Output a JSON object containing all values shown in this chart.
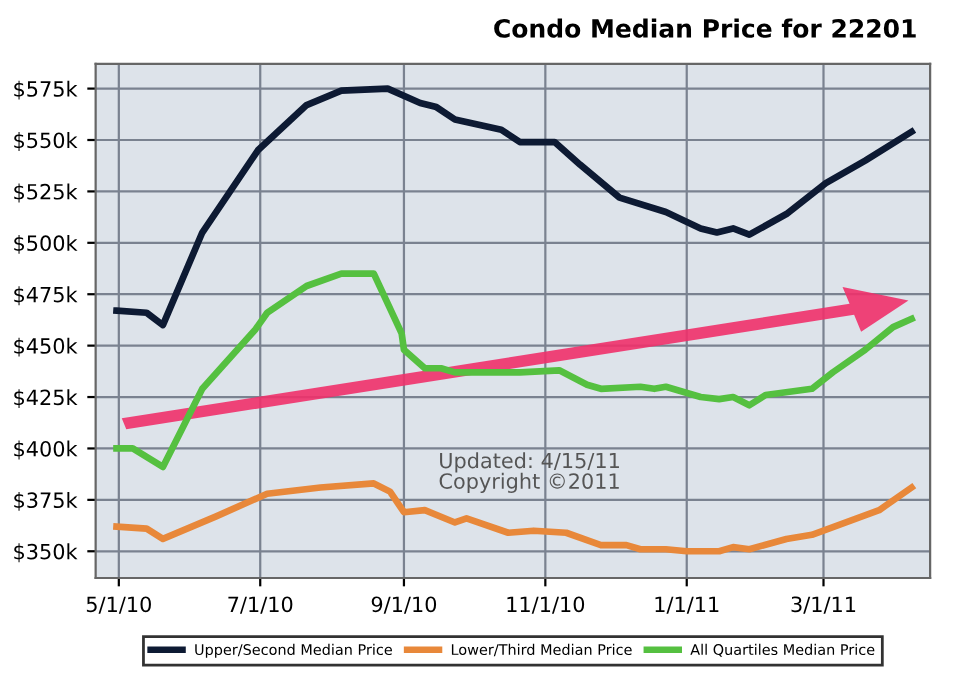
{
  "chart_data": {
    "type": "line",
    "title": "Condo Median Price for 22201",
    "annotations": [
      "Updated: 4/15/11",
      "Copyright ©2011"
    ],
    "xlim": [
      "2010-04-21",
      "2011-04-16"
    ],
    "xticks": [
      {
        "value": "2010-05-01",
        "label": "5/1/10"
      },
      {
        "value": "2010-07-01",
        "label": "7/1/10"
      },
      {
        "value": "2010-09-01",
        "label": "9/1/10"
      },
      {
        "value": "2010-11-01",
        "label": "11/1/10"
      },
      {
        "value": "2011-01-01",
        "label": "1/1/11"
      },
      {
        "value": "2011-03-01",
        "label": "3/1/11"
      }
    ],
    "ylim": [
      337,
      587
    ],
    "yticks": [
      {
        "value": 350,
        "label": "$350k"
      },
      {
        "value": 375,
        "label": "$375k"
      },
      {
        "value": 400,
        "label": "$400k"
      },
      {
        "value": 425,
        "label": "$425k"
      },
      {
        "value": 450,
        "label": "$450k"
      },
      {
        "value": 475,
        "label": "$475k"
      },
      {
        "value": 500,
        "label": "$500k"
      },
      {
        "value": 525,
        "label": "$525k"
      },
      {
        "value": 550,
        "label": "$550k"
      },
      {
        "value": 575,
        "label": "$575k"
      }
    ],
    "grid": true,
    "legend": "bottom",
    "marker": "none",
    "line_style": "solid",
    "series": [
      {
        "name": "Upper/Second Median Price",
        "color": "#0d1a33",
        "x": [
          "2010-04-30",
          "2010-05-13",
          "2010-05-20",
          "2010-06-06",
          "2010-06-30",
          "2010-07-21",
          "2010-08-05",
          "2010-08-25",
          "2010-09-08",
          "2010-09-15",
          "2010-09-23",
          "2010-10-13",
          "2010-10-21",
          "2010-11-05",
          "2010-11-16",
          "2010-12-03",
          "2010-12-23",
          "2011-01-07",
          "2011-01-14",
          "2011-01-21",
          "2011-01-28",
          "2011-02-13",
          "2011-03-02",
          "2011-03-19",
          "2011-04-08"
        ],
        "values": [
          467,
          466,
          460,
          505,
          545,
          567,
          574,
          575,
          568,
          566,
          560,
          555,
          549,
          549,
          538,
          522,
          515,
          507,
          505,
          507,
          504,
          514,
          529,
          540,
          554
        ]
      },
      {
        "name": "Lower/Third Median Price",
        "color": "#e8883a",
        "x": [
          "2010-04-30",
          "2010-05-13",
          "2010-05-20",
          "2010-06-12",
          "2010-07-04",
          "2010-07-27",
          "2010-08-19",
          "2010-08-26",
          "2010-09-01",
          "2010-09-10",
          "2010-09-23",
          "2010-09-28",
          "2010-10-16",
          "2010-10-27",
          "2010-11-10",
          "2010-11-25",
          "2010-12-06",
          "2010-12-12",
          "2010-12-23",
          "2011-01-01",
          "2011-01-15",
          "2011-01-21",
          "2011-01-28",
          "2011-02-13",
          "2011-02-24",
          "2011-03-13",
          "2011-03-25",
          "2011-04-08"
        ],
        "values": [
          362,
          361,
          356,
          367,
          378,
          381,
          383,
          379,
          369,
          370,
          364,
          366,
          359,
          360,
          359,
          353,
          353,
          351,
          351,
          350,
          350,
          352,
          351,
          356,
          358,
          365,
          370,
          381
        ]
      },
      {
        "name": "All Quartiles Median Price",
        "color": "#55c040",
        "x": [
          "2010-04-30",
          "2010-05-07",
          "2010-05-20",
          "2010-06-06",
          "2010-06-29",
          "2010-07-04",
          "2010-07-21",
          "2010-08-05",
          "2010-08-19",
          "2010-08-31",
          "2010-09-01",
          "2010-09-10",
          "2010-09-17",
          "2010-09-23",
          "2010-10-21",
          "2010-11-07",
          "2010-11-19",
          "2010-11-25",
          "2010-12-12",
          "2010-12-18",
          "2010-12-23",
          "2011-01-07",
          "2011-01-15",
          "2011-01-21",
          "2011-01-28",
          "2011-02-04",
          "2011-02-24",
          "2011-03-05",
          "2011-03-19",
          "2011-03-31",
          "2011-04-08"
        ],
        "values": [
          400,
          400,
          391,
          429,
          458,
          466,
          479,
          485,
          485,
          456,
          448,
          439,
          439,
          437,
          437,
          438,
          431,
          429,
          430,
          429,
          430,
          425,
          424,
          425,
          421,
          426,
          429,
          437,
          448,
          459,
          463
        ]
      }
    ]
  }
}
